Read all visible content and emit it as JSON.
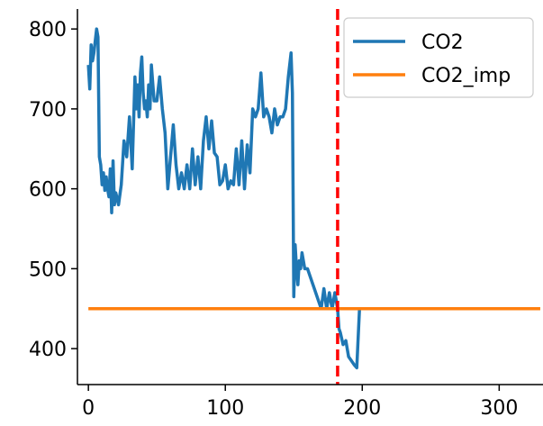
{
  "chart_data": {
    "type": "line",
    "title": "",
    "xlabel": "",
    "ylabel": "",
    "xlim": [
      -8,
      332
    ],
    "ylim": [
      355,
      825
    ],
    "x_ticks": [
      0,
      100,
      200,
      300
    ],
    "y_ticks": [
      400,
      500,
      600,
      700,
      800
    ],
    "grid": false,
    "legend_position": "top-right",
    "vline": {
      "x": 182,
      "color": "#ff0000",
      "style": "dashed"
    },
    "series": [
      {
        "name": "CO2",
        "color": "#1f77b4",
        "x": [
          0,
          1,
          2,
          3,
          4,
          5,
          6,
          7,
          8,
          9,
          10,
          11,
          12,
          13,
          14,
          15,
          16,
          17,
          18,
          19,
          20,
          22,
          24,
          26,
          28,
          30,
          32,
          34,
          35,
          36,
          37,
          38,
          39,
          40,
          41,
          42,
          43,
          44,
          45,
          46,
          48,
          50,
          52,
          54,
          56,
          58,
          60,
          62,
          64,
          66,
          68,
          70,
          72,
          74,
          76,
          78,
          80,
          82,
          84,
          86,
          88,
          90,
          92,
          94,
          96,
          98,
          100,
          102,
          104,
          106,
          108,
          110,
          112,
          114,
          116,
          118,
          120,
          122,
          124,
          126,
          128,
          130,
          132,
          134,
          136,
          138,
          140,
          142,
          144,
          146,
          148,
          149,
          150,
          151,
          152,
          153,
          154,
          155,
          156,
          158,
          160,
          162,
          164,
          166,
          168,
          170,
          172,
          174,
          176,
          178,
          180,
          181,
          182,
          183,
          184,
          186,
          188,
          190,
          192,
          194,
          196,
          198
        ],
        "y": [
          755,
          725,
          780,
          760,
          770,
          785,
          800,
          790,
          640,
          630,
          605,
          620,
          598,
          615,
          600,
          590,
          625,
          570,
          635,
          580,
          595,
          580,
          605,
          660,
          640,
          690,
          625,
          740,
          700,
          730,
          690,
          745,
          765,
          720,
          700,
          710,
          690,
          730,
          700,
          755,
          710,
          710,
          740,
          700,
          670,
          600,
          640,
          680,
          630,
          600,
          620,
          600,
          630,
          600,
          650,
          605,
          640,
          600,
          660,
          690,
          650,
          685,
          645,
          640,
          605,
          610,
          630,
          600,
          610,
          605,
          650,
          605,
          660,
          600,
          655,
          620,
          700,
          690,
          700,
          745,
          690,
          700,
          690,
          670,
          700,
          680,
          690,
          690,
          700,
          740,
          770,
          720,
          465,
          530,
          500,
          480,
          510,
          500,
          520,
          500,
          500,
          490,
          480,
          470,
          460,
          450,
          475,
          450,
          470,
          450,
          470,
          460,
          450,
          425,
          420,
          405,
          410,
          390,
          385,
          380,
          376,
          450
        ]
      },
      {
        "name": "CO2_imp",
        "color": "#ff7f0e",
        "x": [
          0,
          330
        ],
        "y": [
          450,
          450
        ]
      }
    ]
  }
}
